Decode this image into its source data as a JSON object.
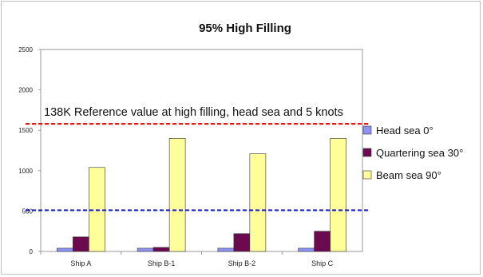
{
  "chart_data": {
    "type": "bar",
    "title": "95% High Filling",
    "xlabel": "",
    "ylabel": "",
    "ylim": [
      0,
      2500
    ],
    "yticks": [
      0,
      500,
      1000,
      1500,
      2000,
      2500
    ],
    "ytick_labels": [
      "0",
      "500",
      "1000",
      "1500",
      "2000",
      "2500"
    ],
    "grid": false,
    "legend_position": "right",
    "categories": [
      "Ship A",
      "Ship B-1",
      "Ship B-2",
      "Ship C"
    ],
    "series": [
      {
        "name": "Head sea 0°",
        "color": "#8f93f5",
        "values": [
          40,
          40,
          40,
          40
        ]
      },
      {
        "name": "Quartering sea 30°",
        "color": "#6b0a4f",
        "values": [
          180,
          50,
          220,
          250
        ]
      },
      {
        "name": "Beam sea 90°",
        "color": "#ffff99",
        "values": [
          1040,
          1400,
          1210,
          1400
        ]
      }
    ],
    "reference_lines": [
      {
        "value": 1580,
        "color": "#e00000",
        "style": "dashed",
        "label": "138K Reference value at high filling, head sea and 5 knots"
      },
      {
        "value": 510,
        "color": "#1f1fbf",
        "style": "dashed",
        "label": ""
      }
    ]
  }
}
